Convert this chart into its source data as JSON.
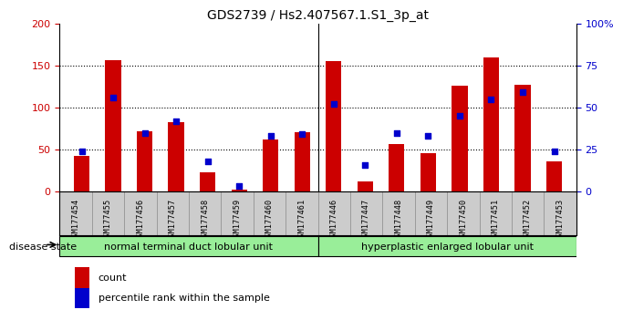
{
  "title": "GDS2739 / Hs2.407567.1.S1_3p_at",
  "categories": [
    "GSM177454",
    "GSM177455",
    "GSM177456",
    "GSM177457",
    "GSM177458",
    "GSM177459",
    "GSM177460",
    "GSM177461",
    "GSM177446",
    "GSM177447",
    "GSM177448",
    "GSM177449",
    "GSM177450",
    "GSM177451",
    "GSM177452",
    "GSM177453"
  ],
  "count_values": [
    42,
    156,
    72,
    83,
    23,
    2,
    62,
    71,
    155,
    12,
    57,
    46,
    126,
    160,
    127,
    36
  ],
  "percentile_values": [
    24,
    56,
    35,
    42,
    18,
    3,
    33,
    34,
    52,
    16,
    35,
    33,
    45,
    55,
    59,
    24
  ],
  "group1_label": "normal terminal duct lobular unit",
  "group2_label": "hyperplastic enlarged lobular unit",
  "group1_count": 8,
  "group2_count": 8,
  "ylim_left": [
    0,
    200
  ],
  "ylim_right": [
    0,
    100
  ],
  "yticks_left": [
    0,
    50,
    100,
    150,
    200
  ],
  "ytick_labels_right": [
    "0",
    "25",
    "50",
    "75",
    "100%"
  ],
  "bar_color": "#cc0000",
  "dot_color": "#0000cc",
  "bg_color": "#ffffff",
  "tick_area_color": "#cccccc",
  "group_color": "#99ee99",
  "legend_count_label": "count",
  "legend_pct_label": "percentile rank within the sample",
  "disease_state_label": "disease state"
}
